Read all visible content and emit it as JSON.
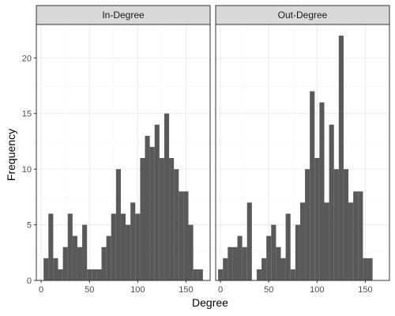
{
  "chart_data": {
    "type": "bar",
    "xlabel": "Degree",
    "ylabel": "Frequency",
    "ylim": [
      0,
      23
    ],
    "yticks": [
      0,
      5,
      10,
      15,
      20
    ],
    "binwidth": 5,
    "grid": true,
    "colors": {
      "bar": "#595959",
      "panel_bg": "#ffffff",
      "grid_major": "#ebebeb",
      "grid_minor": "#f5f5f5",
      "strip_bg": "#d9d9d9",
      "border": "#333333"
    },
    "panels": [
      {
        "name": "In-Degree",
        "xlim": [
          -5,
          175
        ],
        "xticks": [
          0,
          50,
          100,
          150
        ],
        "bins": [
          {
            "x": 5,
            "count": 2
          },
          {
            "x": 10,
            "count": 6
          },
          {
            "x": 15,
            "count": 2
          },
          {
            "x": 20,
            "count": 1
          },
          {
            "x": 25,
            "count": 3
          },
          {
            "x": 30,
            "count": 6
          },
          {
            "x": 35,
            "count": 4
          },
          {
            "x": 40,
            "count": 3
          },
          {
            "x": 45,
            "count": 5
          },
          {
            "x": 50,
            "count": 1
          },
          {
            "x": 55,
            "count": 1
          },
          {
            "x": 60,
            "count": 1
          },
          {
            "x": 65,
            "count": 3
          },
          {
            "x": 70,
            "count": 4
          },
          {
            "x": 75,
            "count": 6
          },
          {
            "x": 80,
            "count": 10
          },
          {
            "x": 85,
            "count": 6
          },
          {
            "x": 90,
            "count": 5
          },
          {
            "x": 95,
            "count": 7
          },
          {
            "x": 100,
            "count": 6
          },
          {
            "x": 105,
            "count": 11
          },
          {
            "x": 110,
            "count": 13
          },
          {
            "x": 115,
            "count": 12
          },
          {
            "x": 120,
            "count": 14
          },
          {
            "x": 125,
            "count": 11
          },
          {
            "x": 130,
            "count": 15
          },
          {
            "x": 135,
            "count": 11
          },
          {
            "x": 140,
            "count": 10
          },
          {
            "x": 145,
            "count": 8
          },
          {
            "x": 150,
            "count": 8
          },
          {
            "x": 155,
            "count": 5
          },
          {
            "x": 160,
            "count": 1
          },
          {
            "x": 165,
            "count": 1
          }
        ]
      },
      {
        "name": "Out-Degree",
        "xlim": [
          -5,
          175
        ],
        "xticks": [
          0,
          50,
          100,
          150
        ],
        "bins": [
          {
            "x": 0,
            "count": 1
          },
          {
            "x": 5,
            "count": 2
          },
          {
            "x": 10,
            "count": 3
          },
          {
            "x": 15,
            "count": 3
          },
          {
            "x": 20,
            "count": 4
          },
          {
            "x": 25,
            "count": 3
          },
          {
            "x": 30,
            "count": 7
          },
          {
            "x": 35,
            "count": 0
          },
          {
            "x": 40,
            "count": 1
          },
          {
            "x": 45,
            "count": 2
          },
          {
            "x": 50,
            "count": 4
          },
          {
            "x": 55,
            "count": 5
          },
          {
            "x": 60,
            "count": 3
          },
          {
            "x": 65,
            "count": 2
          },
          {
            "x": 70,
            "count": 6
          },
          {
            "x": 75,
            "count": 1
          },
          {
            "x": 80,
            "count": 5
          },
          {
            "x": 85,
            "count": 7
          },
          {
            "x": 90,
            "count": 10
          },
          {
            "x": 95,
            "count": 17
          },
          {
            "x": 100,
            "count": 11
          },
          {
            "x": 105,
            "count": 16
          },
          {
            "x": 110,
            "count": 7
          },
          {
            "x": 115,
            "count": 14
          },
          {
            "x": 120,
            "count": 10
          },
          {
            "x": 125,
            "count": 22
          },
          {
            "x": 130,
            "count": 10
          },
          {
            "x": 135,
            "count": 7
          },
          {
            "x": 140,
            "count": 8
          },
          {
            "x": 145,
            "count": 8
          },
          {
            "x": 150,
            "count": 2
          },
          {
            "x": 155,
            "count": 2
          }
        ]
      }
    ]
  }
}
